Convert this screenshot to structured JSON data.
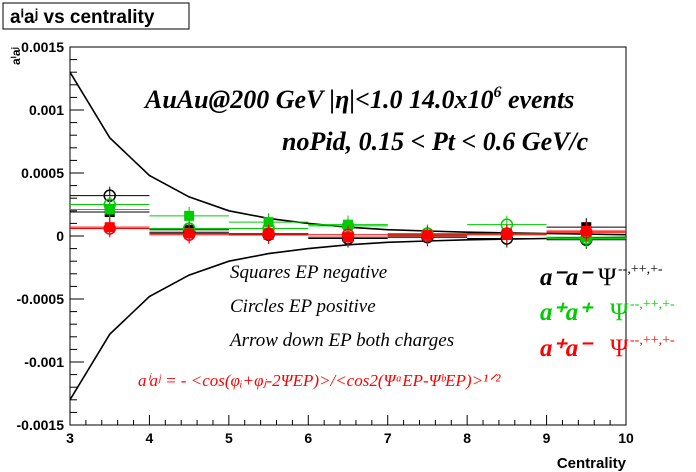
{
  "chart_data": {
    "type": "scatter",
    "title": "aⁱaʲ vs centrality",
    "xlabel": "Centrality",
    "ylabel": "aⁱaʲ",
    "xlim": [
      3,
      10
    ],
    "ylim": [
      -0.0015,
      0.0015
    ],
    "x_ticks": [
      3,
      4,
      5,
      6,
      7,
      8,
      9,
      10
    ],
    "y_ticks": [
      {
        "v": -0.0015,
        "label": "-0.0015"
      },
      {
        "v": -0.001,
        "label": "-0.001"
      },
      {
        "v": -0.0005,
        "label": "-0.0005"
      },
      {
        "v": 0,
        "label": "0"
      },
      {
        "v": 0.0005,
        "label": "0.0005"
      },
      {
        "v": 0.001,
        "label": "0.001"
      },
      {
        "v": 0.0015,
        "label": "0.0015"
      }
    ],
    "series": [
      {
        "name": "a⁻a⁻",
        "color": "#000000",
        "marker": "square",
        "x": [
          3.5,
          4.5,
          5.5,
          6.5,
          7.5,
          8.5,
          9.5
        ],
        "y": [
          0.00019,
          5e-05,
          1e-05,
          -1e-05,
          1e-05,
          2e-05,
          7e-05
        ]
      },
      {
        "name": "a⁻a⁻",
        "color": "#000000",
        "marker": "circle",
        "x": [
          3.5,
          4.5,
          5.5,
          6.5,
          7.5,
          8.5,
          9.5
        ],
        "y": [
          0.00032,
          3e-05,
          1e-05,
          -2e-05,
          -1e-05,
          -2e-05,
          -3e-05
        ]
      },
      {
        "name": "a⁺a⁺",
        "color": "#00cc00",
        "marker": "square",
        "x": [
          3.5,
          4.5,
          5.5,
          6.5,
          7.5,
          8.5,
          9.5
        ],
        "y": [
          0.00021,
          0.00016,
          0.00011,
          9e-05,
          1e-05,
          1e-05,
          -1e-05
        ]
      },
      {
        "name": "a⁺a⁺",
        "color": "#00cc00",
        "marker": "circle",
        "x": [
          3.5,
          4.5,
          5.5,
          6.5,
          7.5,
          8.5,
          9.5
        ],
        "y": [
          0.00025,
          6e-05,
          6e-05,
          8e-05,
          2e-05,
          9e-05,
          -2e-05
        ]
      },
      {
        "name": "a⁺a⁻",
        "color": "#ff0000",
        "marker": "square",
        "x": [
          3.5,
          4.5,
          5.5,
          6.5,
          7.5,
          8.5,
          9.5
        ],
        "y": [
          7e-05,
          2e-05,
          1e-05,
          -1e-05,
          1e-05,
          1e-05,
          4e-05
        ]
      },
      {
        "name": "a⁺a⁻",
        "color": "#ff0000",
        "marker": "circle",
        "x": [
          3.5,
          4.5,
          5.5,
          6.5,
          7.5,
          8.5,
          9.5
        ],
        "y": [
          6e-05,
          1e-05,
          2e-05,
          1e-05,
          0.0,
          2e-05,
          3e-05
        ]
      }
    ],
    "envelope": {
      "x": [
        3.0,
        3.5,
        4.0,
        4.5,
        5.0,
        5.5,
        6.0,
        6.5,
        7.0,
        7.5,
        8.0,
        9.0,
        10.0
      ],
      "upper": [
        0.0013,
        0.00078,
        0.00048,
        0.00031,
        0.0002,
        0.00014,
        0.0001,
        7e-05,
        5e-05,
        4e-05,
        3e-05,
        2e-05,
        1e-05
      ],
      "lower": [
        -0.0013,
        -0.00078,
        -0.00048,
        -0.00031,
        -0.0002,
        -0.00014,
        -0.0001,
        -7e-05,
        -5e-05,
        -4e-05,
        -3e-05,
        -2e-05,
        -1e-05
      ]
    },
    "annotations": {
      "header1": "AuAu@200 GeV |η|<1.0 14.0x10",
      "header1_sup": "6",
      "header1_tail": " events",
      "header2": "noPid, 0.15 < Pt < 0.6 GeV/c",
      "line1": "Squares EP negative",
      "line2": "Circles EP positive",
      "line3": "Arrow down EP both charges",
      "formula": "aⁱaʲ = - <cos(φᵢ+φⱼ-2ΨEP)>/<cos2(ΨᵃEP-ΨᵇEP)>¹ᐟ²",
      "psi_sup": "--,++,+-"
    }
  }
}
